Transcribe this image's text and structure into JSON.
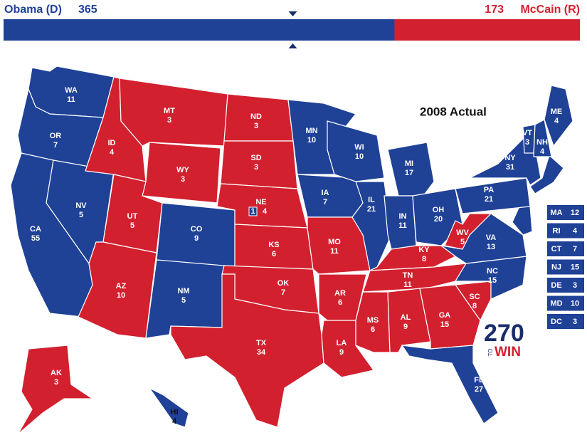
{
  "header": {
    "left": {
      "name": "Obama (D)",
      "votes": 365,
      "color": "#1f4196"
    },
    "right": {
      "name": "McCain (R)",
      "votes": 173,
      "color": "#d2202f"
    }
  },
  "title": "2008 Actual",
  "states": [
    {
      "abbr": "WA",
      "votes": 11,
      "color": "#1f4196"
    },
    {
      "abbr": "OR",
      "votes": 7,
      "color": "#1f4196"
    },
    {
      "abbr": "CA",
      "votes": 55,
      "color": "#1f4196"
    },
    {
      "abbr": "NV",
      "votes": 5,
      "color": "#1f4196"
    },
    {
      "abbr": "ID",
      "votes": 4,
      "color": "#d2202f"
    },
    {
      "abbr": "MT",
      "votes": 3,
      "color": "#d2202f"
    },
    {
      "abbr": "WY",
      "votes": 3,
      "color": "#d2202f"
    },
    {
      "abbr": "UT",
      "votes": 5,
      "color": "#d2202f"
    },
    {
      "abbr": "AZ",
      "votes": 10,
      "color": "#d2202f"
    },
    {
      "abbr": "CO",
      "votes": 9,
      "color": "#1f4196"
    },
    {
      "abbr": "NM",
      "votes": 5,
      "color": "#1f4196"
    },
    {
      "abbr": "ND",
      "votes": 3,
      "color": "#d2202f"
    },
    {
      "abbr": "SD",
      "votes": 3,
      "color": "#d2202f"
    },
    {
      "abbr": "NE",
      "votes": 4,
      "color": "#d2202f",
      "split": {
        "votes": 1,
        "color": "#1f4196"
      }
    },
    {
      "abbr": "KS",
      "votes": 6,
      "color": "#d2202f"
    },
    {
      "abbr": "OK",
      "votes": 7,
      "color": "#d2202f"
    },
    {
      "abbr": "TX",
      "votes": 34,
      "color": "#d2202f"
    },
    {
      "abbr": "MN",
      "votes": 10,
      "color": "#1f4196"
    },
    {
      "abbr": "IA",
      "votes": 7,
      "color": "#1f4196"
    },
    {
      "abbr": "MO",
      "votes": 11,
      "color": "#d2202f"
    },
    {
      "abbr": "AR",
      "votes": 6,
      "color": "#d2202f"
    },
    {
      "abbr": "LA",
      "votes": 9,
      "color": "#d2202f"
    },
    {
      "abbr": "WI",
      "votes": 10,
      "color": "#1f4196"
    },
    {
      "abbr": "IL",
      "votes": 21,
      "color": "#1f4196"
    },
    {
      "abbr": "MI",
      "votes": 17,
      "color": "#1f4196"
    },
    {
      "abbr": "IN",
      "votes": 11,
      "color": "#1f4196"
    },
    {
      "abbr": "OH",
      "votes": 20,
      "color": "#1f4196"
    },
    {
      "abbr": "KY",
      "votes": 8,
      "color": "#d2202f"
    },
    {
      "abbr": "TN",
      "votes": 11,
      "color": "#d2202f"
    },
    {
      "abbr": "MS",
      "votes": 6,
      "color": "#d2202f"
    },
    {
      "abbr": "AL",
      "votes": 9,
      "color": "#d2202f"
    },
    {
      "abbr": "GA",
      "votes": 15,
      "color": "#d2202f"
    },
    {
      "abbr": "FL",
      "votes": 27,
      "color": "#1f4196"
    },
    {
      "abbr": "SC",
      "votes": 8,
      "color": "#d2202f"
    },
    {
      "abbr": "NC",
      "votes": 15,
      "color": "#1f4196"
    },
    {
      "abbr": "VA",
      "votes": 13,
      "color": "#1f4196"
    },
    {
      "abbr": "WV",
      "votes": 5,
      "color": "#d2202f"
    },
    {
      "abbr": "PA",
      "votes": 21,
      "color": "#1f4196"
    },
    {
      "abbr": "NY",
      "votes": 31,
      "color": "#1f4196"
    },
    {
      "abbr": "VT",
      "votes": 3,
      "color": "#1f4196"
    },
    {
      "abbr": "NH",
      "votes": 4,
      "color": "#1f4196"
    },
    {
      "abbr": "ME",
      "votes": 4,
      "color": "#1f4196"
    },
    {
      "abbr": "AK",
      "votes": 3,
      "color": "#d2202f"
    },
    {
      "abbr": "HI",
      "votes": 4,
      "color": "#1f4196"
    }
  ],
  "small_states": [
    {
      "abbr": "MA",
      "votes": 12,
      "color": "#1f4196"
    },
    {
      "abbr": "RI",
      "votes": 4,
      "color": "#1f4196"
    },
    {
      "abbr": "CT",
      "votes": 7,
      "color": "#1f4196"
    },
    {
      "abbr": "NJ",
      "votes": 15,
      "color": "#1f4196"
    },
    {
      "abbr": "DE",
      "votes": 3,
      "color": "#1f4196"
    },
    {
      "abbr": "MD",
      "votes": 10,
      "color": "#1f4196"
    },
    {
      "abbr": "DC",
      "votes": 3,
      "color": "#1f4196"
    }
  ],
  "logo": {
    "number": 270,
    "to": "TO",
    "win": "WIN"
  }
}
